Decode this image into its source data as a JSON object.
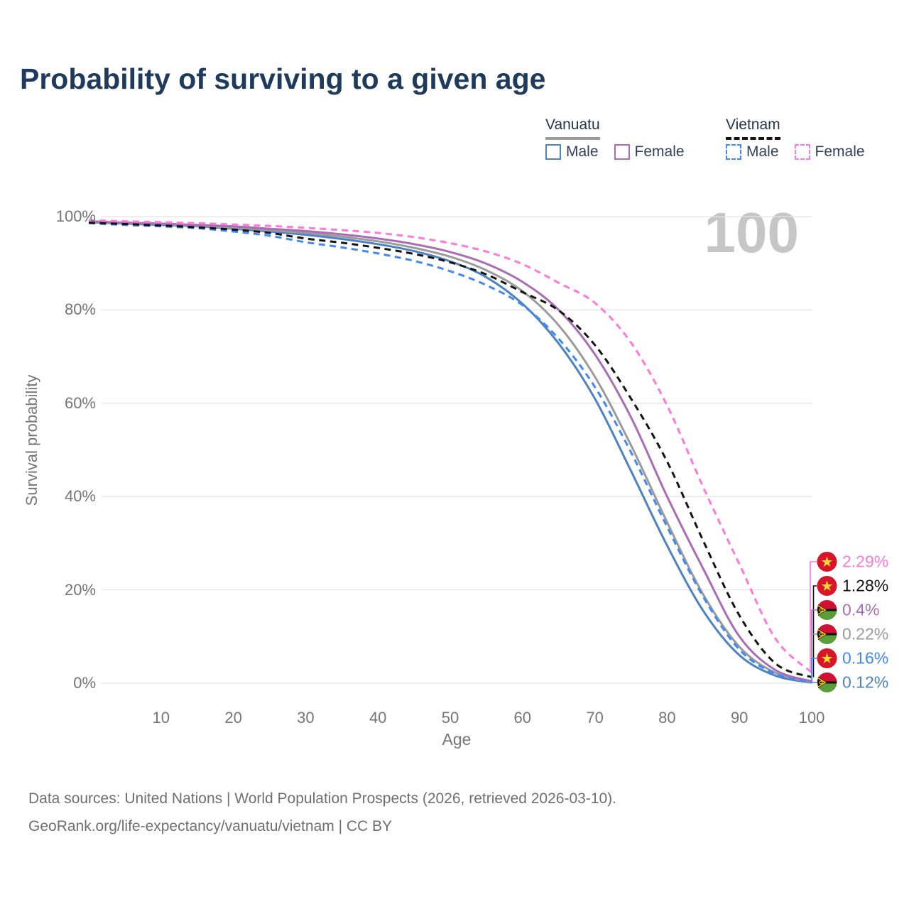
{
  "title": "Probability of surviving to a given age",
  "watermark_age": "100",
  "legend": {
    "groups": [
      {
        "title": "Vanuatu",
        "line_style": "solid",
        "items": [
          {
            "label": "Male",
            "color": "#4d82c4"
          },
          {
            "label": "Female",
            "color": "#a86db5"
          }
        ]
      },
      {
        "title": "Vietnam",
        "line_style": "dashed",
        "items": [
          {
            "label": "Male",
            "color": "#3f88f5"
          },
          {
            "label": "Female",
            "color": "#ff78de"
          }
        ]
      }
    ]
  },
  "axes": {
    "xlabel": "Age",
    "ylabel": "Survival probability",
    "x_ticks": [
      10,
      20,
      30,
      40,
      50,
      60,
      70,
      80,
      90,
      100
    ],
    "y_ticks": [
      "0%",
      "20%",
      "40%",
      "60%",
      "80%",
      "100%"
    ]
  },
  "chart_data": {
    "type": "line",
    "title": "Probability of surviving to a given age",
    "xlabel": "Age",
    "ylabel": "Survival probability",
    "xlim": [
      0,
      100
    ],
    "ylim_pct": [
      0,
      100
    ],
    "grid": "horizontal",
    "legend_position": "top-right",
    "ages": [
      0,
      5,
      10,
      15,
      20,
      25,
      30,
      35,
      40,
      45,
      50,
      55,
      60,
      65,
      70,
      75,
      80,
      85,
      90,
      95,
      100
    ],
    "series": [
      {
        "name": "Vanuatu Male",
        "country": "Vanuatu",
        "sex": "Male",
        "color": "#4d82c4",
        "dash": false,
        "flag": "vanuatu-flag",
        "values": [
          98.8,
          98.5,
          98.2,
          97.9,
          97.4,
          96.8,
          96.1,
          95.2,
          94.1,
          92.6,
          90.4,
          87.0,
          81.3,
          72.8,
          61.0,
          45.5,
          29.5,
          15.5,
          6.0,
          1.6,
          0.12
        ],
        "end_label": "0.12%"
      },
      {
        "name": "Vanuatu Total",
        "country": "Vanuatu",
        "sex": "Total",
        "color": "#9b9b9b",
        "dash": false,
        "flag": "vanuatu-flag",
        "values": [
          98.9,
          98.6,
          98.4,
          98.0,
          97.6,
          97.1,
          96.5,
          95.7,
          94.7,
          93.3,
          91.4,
          88.5,
          84.0,
          76.7,
          65.7,
          51.0,
          34.5,
          19.0,
          7.8,
          2.2,
          0.22
        ],
        "end_label": "0.22%"
      },
      {
        "name": "Vanuatu Female",
        "country": "Vanuatu",
        "sex": "Female",
        "color": "#a86db5",
        "dash": false,
        "flag": "vanuatu-flag",
        "values": [
          99.0,
          98.7,
          98.5,
          98.2,
          97.9,
          97.4,
          96.9,
          96.2,
          95.3,
          94.1,
          92.4,
          89.9,
          86.0,
          80.0,
          70.5,
          57.0,
          40.0,
          24.5,
          10.0,
          2.8,
          0.4
        ],
        "end_label": "0.4%"
      },
      {
        "name": "Vietnam Male",
        "country": "Vietnam",
        "sex": "Male",
        "color": "#3f88f5",
        "dash": true,
        "flag": "vietnam-flag",
        "values": [
          98.6,
          98.2,
          97.9,
          97.5,
          96.8,
          95.9,
          94.5,
          93.4,
          92.1,
          90.5,
          88.3,
          85.3,
          81.0,
          73.8,
          63.5,
          49.5,
          33.5,
          18.5,
          7.2,
          2.0,
          0.16
        ],
        "end_label": "0.16%"
      },
      {
        "name": "Vietnam Total",
        "country": "Vietnam",
        "sex": "Total",
        "color": "#141414",
        "dash": true,
        "flag": "vietnam-flag",
        "values": [
          98.7,
          98.4,
          98.1,
          97.7,
          97.2,
          96.5,
          95.3,
          94.4,
          93.3,
          92.0,
          90.2,
          87.6,
          83.8,
          79.9,
          72.5,
          61.0,
          47.5,
          30.5,
          14.5,
          4.2,
          1.28
        ],
        "end_label": "1.28%"
      },
      {
        "name": "Vietnam Female",
        "country": "Vietnam",
        "sex": "Female",
        "color": "#ff78de",
        "dash": true,
        "flag": "vietnam-flag",
        "values": [
          99.2,
          99.0,
          98.8,
          98.6,
          98.3,
          98.0,
          97.6,
          97.1,
          96.5,
          95.6,
          94.3,
          92.5,
          89.8,
          85.8,
          81.5,
          73.0,
          59.5,
          42.0,
          25.5,
          9.5,
          2.29
        ],
        "end_label": "2.29%"
      }
    ]
  },
  "footer": {
    "line1": "Data sources: United Nations | World Population Prospects (2026, retrieved 2026-03-10).",
    "line2": "GeoRank.org/life-expectancy/vanuatu/vietnam | CC BY"
  }
}
